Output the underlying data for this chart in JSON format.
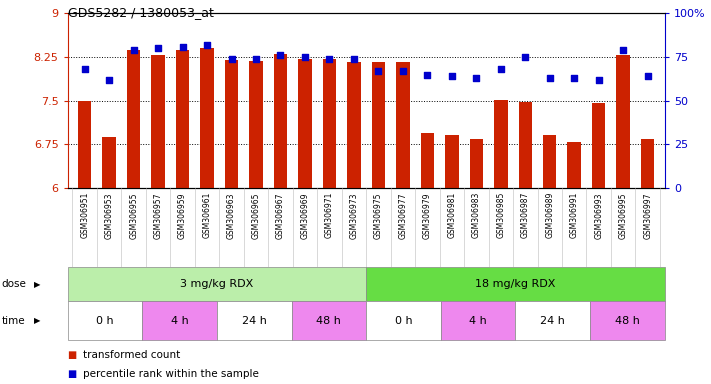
{
  "title": "GDS5282 / 1380053_at",
  "samples": [
    "GSM306951",
    "GSM306953",
    "GSM306955",
    "GSM306957",
    "GSM306959",
    "GSM306961",
    "GSM306963",
    "GSM306965",
    "GSM306967",
    "GSM306969",
    "GSM306971",
    "GSM306973",
    "GSM306975",
    "GSM306977",
    "GSM306979",
    "GSM306981",
    "GSM306983",
    "GSM306985",
    "GSM306987",
    "GSM306989",
    "GSM306991",
    "GSM306993",
    "GSM306995",
    "GSM306997"
  ],
  "bar_values": [
    7.5,
    6.87,
    8.37,
    8.28,
    8.38,
    8.4,
    8.2,
    8.18,
    8.3,
    8.22,
    8.22,
    8.17,
    8.17,
    8.17,
    6.95,
    6.92,
    6.85,
    7.52,
    7.48,
    6.92,
    6.8,
    7.47,
    8.28,
    6.85
  ],
  "blue_pct": [
    68,
    62,
    79,
    80,
    81,
    82,
    74,
    74,
    76,
    75,
    74,
    74,
    67,
    67,
    65,
    64,
    63,
    68,
    75,
    63,
    63,
    62,
    79,
    64
  ],
  "ymin": 6.0,
  "ymax": 9.0,
  "yticks_left": [
    6.0,
    6.75,
    7.5,
    8.25,
    9.0
  ],
  "ytick_labels_left": [
    "6",
    "6.75",
    "7.5",
    "8.25",
    "9"
  ],
  "yticks_right_pct": [
    0,
    25,
    50,
    75,
    100
  ],
  "ytick_labels_right": [
    "0",
    "25",
    "50",
    "75",
    "100%"
  ],
  "hlines": [
    6.75,
    7.5,
    8.25
  ],
  "bar_color": "#cc2200",
  "dot_color": "#0000cc",
  "dose_groups": [
    {
      "label": "3 mg/kg RDX",
      "start": 0,
      "end": 12,
      "color": "#bbeeaa"
    },
    {
      "label": "18 mg/kg RDX",
      "start": 12,
      "end": 24,
      "color": "#66dd44"
    }
  ],
  "time_groups": [
    {
      "label": "0 h",
      "start": 0,
      "end": 3,
      "color": "#ffffff"
    },
    {
      "label": "4 h",
      "start": 3,
      "end": 6,
      "color": "#ee88ee"
    },
    {
      "label": "24 h",
      "start": 6,
      "end": 9,
      "color": "#ffffff"
    },
    {
      "label": "48 h",
      "start": 9,
      "end": 12,
      "color": "#ee88ee"
    },
    {
      "label": "0 h",
      "start": 12,
      "end": 15,
      "color": "#ffffff"
    },
    {
      "label": "4 h",
      "start": 15,
      "end": 18,
      "color": "#ee88ee"
    },
    {
      "label": "24 h",
      "start": 18,
      "end": 21,
      "color": "#ffffff"
    },
    {
      "label": "48 h",
      "start": 21,
      "end": 24,
      "color": "#ee88ee"
    }
  ],
  "n": 24
}
